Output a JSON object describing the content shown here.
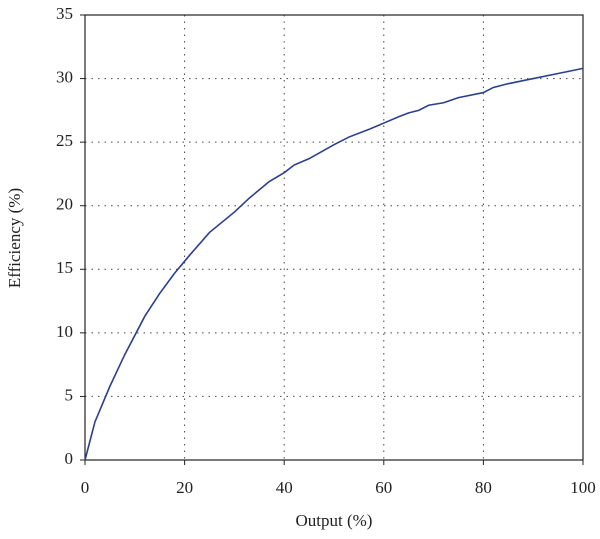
{
  "chart_data": {
    "type": "line",
    "x_label": "Output (%)",
    "y_label": "Efficiency (%)",
    "x": [
      0,
      2,
      5,
      8,
      12,
      15,
      18,
      21,
      25,
      30,
      33,
      37,
      40,
      42,
      45,
      50,
      53,
      57,
      60,
      63,
      65,
      67,
      69,
      72,
      75,
      80,
      82,
      85,
      90,
      95,
      100
    ],
    "series": [
      {
        "name": "Efficiency",
        "color": "#2b3f8f",
        "values": [
          0,
          3,
          5.8,
          8.3,
          11.3,
          13.1,
          14.7,
          16.1,
          17.9,
          19.5,
          20.6,
          21.9,
          22.6,
          23.2,
          23.7,
          24.8,
          25.4,
          26.0,
          26.5,
          27.0,
          27.3,
          27.5,
          27.9,
          28.1,
          28.5,
          28.9,
          29.3,
          29.6,
          30.0,
          30.4,
          30.8
        ]
      }
    ],
    "xlim": [
      0,
      100
    ],
    "xticks": [
      0,
      20,
      40,
      60,
      80,
      100
    ],
    "ylim": [
      0,
      35
    ],
    "yticks": [
      0,
      5,
      10,
      15,
      20,
      25,
      30,
      35
    ],
    "grid": true
  }
}
